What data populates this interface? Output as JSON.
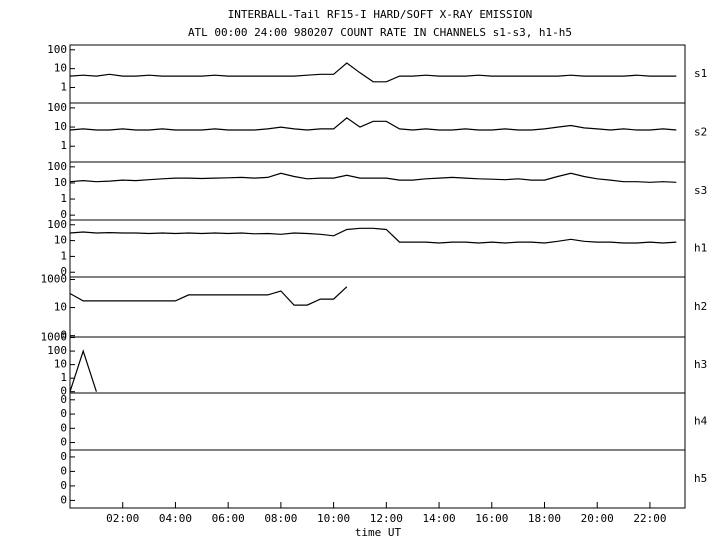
{
  "chart_data": {
    "type": "line",
    "title": "INTERBALL-Tail RF15-I HARD/SOFT X-RAY EMISSION",
    "subtitle": "ATL 00:00 24:00 980207  COUNT RATE IN CHANNELS s1-s3, h1-h5",
    "xlabel": "time UT",
    "color": "#000000",
    "xlim": [
      0,
      23.33
    ],
    "xticks": [
      {
        "value": 2,
        "label": "02:00"
      },
      {
        "value": 4,
        "label": "04:00"
      },
      {
        "value": 6,
        "label": "06:00"
      },
      {
        "value": 8,
        "label": "08:00"
      },
      {
        "value": 10,
        "label": "10:00"
      },
      {
        "value": 12,
        "label": "12:00"
      },
      {
        "value": 14,
        "label": "14:00"
      },
      {
        "value": 16,
        "label": "16:00"
      },
      {
        "value": 18,
        "label": "18:00"
      },
      {
        "value": 20,
        "label": "20:00"
      },
      {
        "value": 22,
        "label": "22:00"
      }
    ],
    "x": [
      0,
      0.5,
      1,
      1.5,
      2,
      2.5,
      3,
      3.5,
      4,
      4.5,
      5,
      5.5,
      6,
      6.5,
      7,
      7.5,
      8,
      8.5,
      9,
      9.5,
      10,
      10.5,
      11,
      11.5,
      12,
      12.5,
      13,
      13.5,
      14,
      14.5,
      15,
      15.5,
      16,
      16.5,
      17,
      17.5,
      18,
      18.5,
      19,
      19.5,
      20,
      20.5,
      21,
      21.5,
      22,
      22.5,
      23
    ],
    "log_scale": true,
    "panels": [
      {
        "name": "s1",
        "ylim": [
          0.15,
          180
        ],
        "yticks": [
          1,
          10,
          100
        ],
        "values": [
          4,
          4.5,
          4,
          5,
          4,
          4,
          4.5,
          4,
          4,
          4,
          4,
          4.5,
          4,
          4,
          4,
          4,
          4,
          4,
          4.5,
          5,
          5,
          20,
          6,
          2,
          2,
          4,
          4,
          4.5,
          4,
          4,
          4,
          4.5,
          4,
          4,
          4,
          4,
          4,
          4,
          4.5,
          4,
          4,
          4,
          4,
          4.5,
          4,
          4,
          4
        ]
      },
      {
        "name": "s2",
        "ylim": [
          0.15,
          180
        ],
        "yticks": [
          1,
          10,
          100
        ],
        "values": [
          7,
          8,
          7,
          7,
          8,
          7,
          7,
          8,
          7,
          7,
          7,
          8,
          7,
          7,
          7,
          8,
          10,
          8,
          7,
          8,
          8,
          30,
          10,
          20,
          20,
          8,
          7,
          8,
          7,
          7,
          8,
          7,
          7,
          8,
          7,
          7,
          8,
          10,
          12,
          9,
          8,
          7,
          8,
          7,
          7,
          8,
          7
        ]
      },
      {
        "name": "s3",
        "ylim": [
          0.05,
          200
        ],
        "yticks": [
          {
            "value": 0.1,
            "label": "0"
          },
          1,
          10,
          100
        ],
        "values": [
          12,
          14,
          12,
          13,
          15,
          14,
          16,
          18,
          20,
          20,
          19,
          20,
          21,
          22,
          20,
          22,
          40,
          25,
          18,
          20,
          20,
          30,
          20,
          20,
          20,
          15,
          15,
          18,
          20,
          22,
          20,
          18,
          17,
          16,
          18,
          15,
          15,
          25,
          40,
          25,
          18,
          15,
          12,
          12,
          11,
          12,
          11
        ]
      },
      {
        "name": "h1",
        "ylim": [
          0.05,
          200
        ],
        "yticks": [
          {
            "value": 0.1,
            "label": "0"
          },
          1,
          10,
          100
        ],
        "values": [
          30,
          35,
          30,
          32,
          30,
          30,
          28,
          30,
          28,
          30,
          28,
          30,
          28,
          30,
          27,
          28,
          25,
          30,
          28,
          25,
          20,
          50,
          60,
          60,
          50,
          8,
          8,
          8,
          7,
          8,
          8,
          7,
          8,
          7,
          8,
          8,
          7,
          9,
          12,
          9,
          8,
          8,
          7,
          7,
          8,
          7,
          8
        ]
      },
      {
        "name": "h2",
        "ylim": [
          0.08,
          1500
        ],
        "yticks": [
          {
            "value": 0.1,
            "label": "0"
          },
          10,
          1000
        ],
        "values": [
          100,
          30,
          30,
          30,
          30,
          30,
          30,
          30,
          30,
          80,
          80,
          80,
          80,
          80,
          80,
          80,
          150,
          15,
          15,
          40,
          40,
          300,
          null,
          null,
          null,
          null,
          null,
          null,
          null,
          null,
          null,
          null,
          null,
          null,
          null,
          null,
          null,
          null,
          null,
          null,
          null,
          null,
          null,
          null,
          null,
          null,
          null
        ]
      },
      {
        "name": "h3",
        "ylim": [
          0.08,
          1100
        ],
        "yticks": [
          {
            "value": 0.1,
            "label": "0"
          },
          1,
          10,
          100,
          1000
        ],
        "values": [
          0.1,
          100,
          0.1,
          null,
          null,
          null,
          null,
          null,
          null,
          null,
          null,
          null,
          null,
          null,
          null,
          null,
          null,
          null,
          null,
          null,
          null,
          null,
          null,
          null,
          null,
          null,
          null,
          null,
          null,
          null,
          null,
          null,
          null,
          null,
          null,
          null,
          null,
          null,
          null,
          null,
          null,
          null,
          null,
          null,
          null,
          null,
          null
        ]
      },
      {
        "name": "h4",
        "ylim": [
          3e-05,
          0.3
        ],
        "yticks": [
          {
            "value": 0.0001,
            "label": "0"
          },
          {
            "value": 0.001,
            "label": "0"
          },
          {
            "value": 0.01,
            "label": "0"
          },
          {
            "value": 0.1,
            "label": "0"
          }
        ]
      },
      {
        "name": "h5",
        "ylim": [
          3e-05,
          0.3
        ],
        "yticks": [
          {
            "value": 0.0001,
            "label": "0"
          },
          {
            "value": 0.001,
            "label": "0"
          },
          {
            "value": 0.01,
            "label": "0"
          },
          {
            "value": 0.1,
            "label": "0"
          }
        ]
      }
    ]
  }
}
